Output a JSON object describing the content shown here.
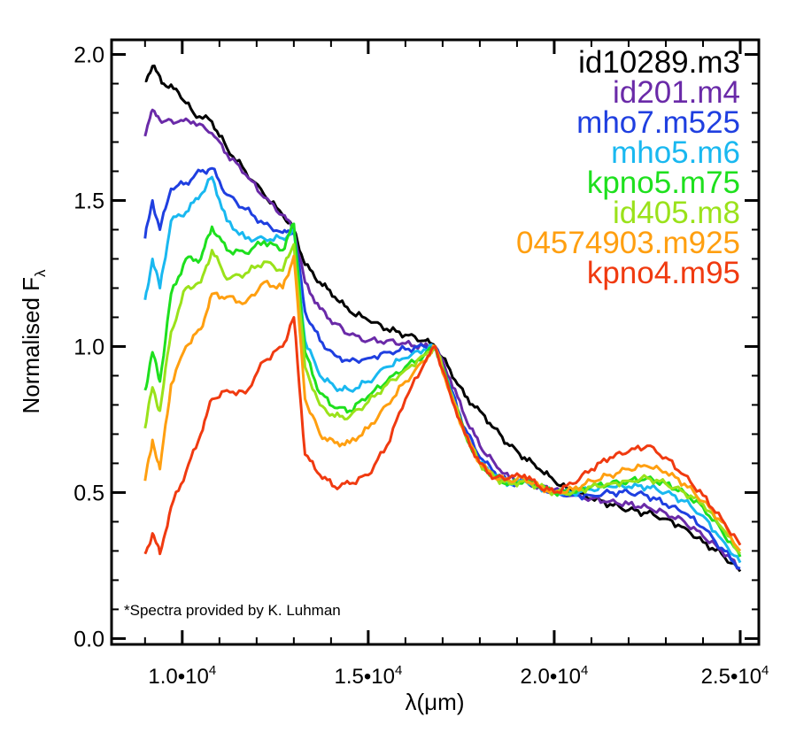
{
  "chart_data": {
    "type": "line",
    "title": "",
    "xlabel": "λ(μm)",
    "ylabel": "Normalised F",
    "ylabel_subscript": "λ",
    "xlim": [
      8100,
      25500
    ],
    "ylim": [
      -0.02,
      2.05
    ],
    "x_ticks": [
      {
        "value": 10000,
        "mantissa": "1.0•10",
        "exp": "4"
      },
      {
        "value": 15000,
        "mantissa": "1.5•10",
        "exp": "4"
      },
      {
        "value": 20000,
        "mantissa": "2.0•10",
        "exp": "4"
      },
      {
        "value": 25000,
        "mantissa": "2.5•10",
        "exp": "4"
      }
    ],
    "y_ticks": [
      {
        "value": 0.0,
        "label": "0.0"
      },
      {
        "value": 0.5,
        "label": "0.5"
      },
      {
        "value": 1.0,
        "label": "1.0"
      },
      {
        "value": 1.5,
        "label": "1.5"
      },
      {
        "value": 2.0,
        "label": "2.0"
      }
    ],
    "legend_position": "top-right",
    "annotation": "*Spectra provided by K. Luhman",
    "series": [
      {
        "name": "id10289.m3",
        "color": "#000000",
        "x": [
          9000,
          9200,
          9500,
          9900,
          10300,
          10800,
          11200,
          11700,
          12200,
          12700,
          13000,
          13300,
          13700,
          14100,
          14500,
          15000,
          15500,
          16000,
          16500,
          16800,
          17200,
          17600,
          18000,
          18400,
          18800,
          19200,
          19600,
          20000,
          20500,
          21000,
          21500,
          22000,
          22500,
          23000,
          23500,
          24000,
          24500,
          25000
        ],
        "y": [
          1.91,
          1.96,
          1.9,
          1.87,
          1.8,
          1.77,
          1.68,
          1.6,
          1.52,
          1.45,
          1.4,
          1.28,
          1.22,
          1.17,
          1.12,
          1.09,
          1.06,
          1.04,
          1.02,
          1.0,
          0.92,
          0.83,
          0.78,
          0.72,
          0.66,
          0.62,
          0.58,
          0.54,
          0.5,
          0.48,
          0.46,
          0.44,
          0.43,
          0.41,
          0.38,
          0.33,
          0.29,
          0.23
        ]
      },
      {
        "name": "id201.m4",
        "color": "#6a2aa8",
        "x": [
          9000,
          9200,
          9500,
          9900,
          10300,
          10800,
          11200,
          11700,
          12200,
          12700,
          13000,
          13300,
          13700,
          14100,
          14500,
          15000,
          15500,
          16000,
          16500,
          16800,
          17200,
          17600,
          18000,
          18400,
          18800,
          19200,
          19600,
          20000,
          20500,
          21000,
          21500,
          22000,
          22500,
          23000,
          23500,
          24000,
          24500,
          25000
        ],
        "y": [
          1.72,
          1.81,
          1.77,
          1.77,
          1.77,
          1.73,
          1.66,
          1.59,
          1.51,
          1.45,
          1.4,
          1.22,
          1.13,
          1.08,
          1.04,
          1.02,
          1.02,
          1.01,
          1.0,
          1.0,
          0.89,
          0.76,
          0.66,
          0.6,
          0.55,
          0.54,
          0.52,
          0.51,
          0.49,
          0.48,
          0.47,
          0.46,
          0.45,
          0.43,
          0.4,
          0.35,
          0.3,
          0.24
        ]
      },
      {
        "name": "mho7.m525",
        "color": "#1f3fe0",
        "x": [
          9000,
          9200,
          9400,
          9700,
          10100,
          10500,
          10800,
          11200,
          11700,
          12200,
          12700,
          13000,
          13300,
          13700,
          14100,
          14500,
          15000,
          15500,
          16000,
          16500,
          16800,
          17200,
          17600,
          18000,
          18400,
          18800,
          19200,
          19600,
          20000,
          20500,
          21000,
          21500,
          22000,
          22500,
          23000,
          23500,
          24000,
          24500,
          25000
        ],
        "y": [
          1.37,
          1.5,
          1.4,
          1.54,
          1.56,
          1.6,
          1.61,
          1.52,
          1.47,
          1.42,
          1.39,
          1.4,
          1.12,
          1.02,
          0.97,
          0.95,
          0.96,
          0.98,
          0.99,
          1.0,
          1.0,
          0.86,
          0.72,
          0.62,
          0.57,
          0.53,
          0.54,
          0.52,
          0.5,
          0.49,
          0.49,
          0.5,
          0.5,
          0.49,
          0.46,
          0.43,
          0.38,
          0.31,
          0.24
        ]
      },
      {
        "name": "mho5.m6",
        "color": "#19b8f0",
        "x": [
          9000,
          9200,
          9400,
          9700,
          10100,
          10500,
          10800,
          11200,
          11700,
          12200,
          12700,
          13000,
          13300,
          13700,
          14100,
          14500,
          15000,
          15500,
          16000,
          16500,
          16800,
          17200,
          17600,
          18000,
          18400,
          18800,
          19200,
          19600,
          20000,
          20500,
          21000,
          21500,
          22000,
          22500,
          23000,
          23500,
          24000,
          24500,
          25000
        ],
        "y": [
          1.16,
          1.3,
          1.2,
          1.43,
          1.46,
          1.52,
          1.58,
          1.43,
          1.37,
          1.37,
          1.37,
          1.4,
          1.02,
          0.9,
          0.86,
          0.85,
          0.88,
          0.93,
          0.96,
          0.99,
          1.0,
          0.85,
          0.7,
          0.6,
          0.56,
          0.53,
          0.54,
          0.52,
          0.5,
          0.5,
          0.51,
          0.52,
          0.52,
          0.52,
          0.5,
          0.47,
          0.42,
          0.34,
          0.26
        ]
      },
      {
        "name": "kpno5.m75",
        "color": "#1ee01e",
        "x": [
          9000,
          9200,
          9400,
          9700,
          10100,
          10500,
          10800,
          11200,
          11700,
          12200,
          12700,
          13000,
          13300,
          13700,
          14100,
          14500,
          15000,
          15500,
          16000,
          16500,
          16800,
          17200,
          17600,
          18000,
          18400,
          18800,
          19200,
          19600,
          20000,
          20500,
          21000,
          21500,
          22000,
          22500,
          23000,
          23500,
          24000,
          24500,
          25000
        ],
        "y": [
          0.85,
          0.98,
          0.88,
          1.18,
          1.3,
          1.3,
          1.41,
          1.33,
          1.32,
          1.36,
          1.33,
          1.42,
          0.98,
          0.84,
          0.79,
          0.78,
          0.83,
          0.88,
          0.93,
          0.97,
          1.0,
          0.85,
          0.7,
          0.6,
          0.55,
          0.53,
          0.54,
          0.52,
          0.5,
          0.5,
          0.52,
          0.53,
          0.54,
          0.55,
          0.53,
          0.5,
          0.45,
          0.37,
          0.28
        ]
      },
      {
        "name": "id405.m8",
        "color": "#9ae21a",
        "x": [
          9000,
          9200,
          9400,
          9700,
          10100,
          10500,
          10800,
          11200,
          11700,
          12200,
          12700,
          13000,
          13300,
          13700,
          14100,
          14500,
          15000,
          15500,
          16000,
          16500,
          16800,
          17200,
          17600,
          18000,
          18400,
          18800,
          19200,
          19600,
          20000,
          20500,
          21000,
          21500,
          22000,
          22500,
          23000,
          23500,
          24000,
          24500,
          25000
        ],
        "y": [
          0.72,
          0.86,
          0.78,
          1.05,
          1.2,
          1.22,
          1.33,
          1.23,
          1.25,
          1.29,
          1.26,
          1.35,
          0.93,
          0.8,
          0.76,
          0.76,
          0.81,
          0.87,
          0.92,
          0.97,
          1.0,
          0.85,
          0.7,
          0.6,
          0.55,
          0.53,
          0.54,
          0.52,
          0.5,
          0.5,
          0.52,
          0.53,
          0.54,
          0.55,
          0.53,
          0.5,
          0.46,
          0.38,
          0.29
        ]
      },
      {
        "name": "04574903.m925",
        "color": "#ff9f10",
        "x": [
          9000,
          9200,
          9400,
          9700,
          10100,
          10500,
          10800,
          11200,
          11700,
          12200,
          12700,
          13000,
          13300,
          13700,
          14100,
          14500,
          15000,
          15500,
          16000,
          16500,
          16800,
          17200,
          17600,
          18000,
          18400,
          18800,
          19200,
          19600,
          20000,
          20500,
          21000,
          21500,
          22000,
          22500,
          23000,
          23500,
          24000,
          24500,
          25000
        ],
        "y": [
          0.54,
          0.68,
          0.58,
          0.87,
          1.0,
          1.06,
          1.18,
          1.17,
          1.15,
          1.22,
          1.2,
          1.31,
          0.82,
          0.7,
          0.67,
          0.67,
          0.72,
          0.8,
          0.88,
          0.95,
          1.0,
          0.84,
          0.7,
          0.6,
          0.55,
          0.54,
          0.55,
          0.52,
          0.5,
          0.51,
          0.54,
          0.56,
          0.58,
          0.59,
          0.57,
          0.53,
          0.47,
          0.4,
          0.3
        ]
      },
      {
        "name": "kpno4.m95",
        "color": "#f03a10",
        "x": [
          9000,
          9200,
          9400,
          9700,
          10100,
          10500,
          10800,
          11200,
          11700,
          12200,
          12700,
          13000,
          13300,
          13700,
          14100,
          14500,
          15000,
          15500,
          16000,
          16500,
          16800,
          17200,
          17600,
          18000,
          18400,
          18800,
          19200,
          19600,
          20000,
          20500,
          21000,
          21500,
          22000,
          22500,
          23000,
          23500,
          24000,
          24500,
          25000
        ],
        "y": [
          0.29,
          0.36,
          0.29,
          0.45,
          0.57,
          0.7,
          0.82,
          0.85,
          0.84,
          0.95,
          1.0,
          1.1,
          0.63,
          0.56,
          0.52,
          0.53,
          0.56,
          0.66,
          0.82,
          0.94,
          1.0,
          0.84,
          0.7,
          0.6,
          0.55,
          0.55,
          0.56,
          0.52,
          0.5,
          0.53,
          0.58,
          0.62,
          0.64,
          0.66,
          0.62,
          0.56,
          0.49,
          0.41,
          0.32
        ]
      }
    ]
  }
}
